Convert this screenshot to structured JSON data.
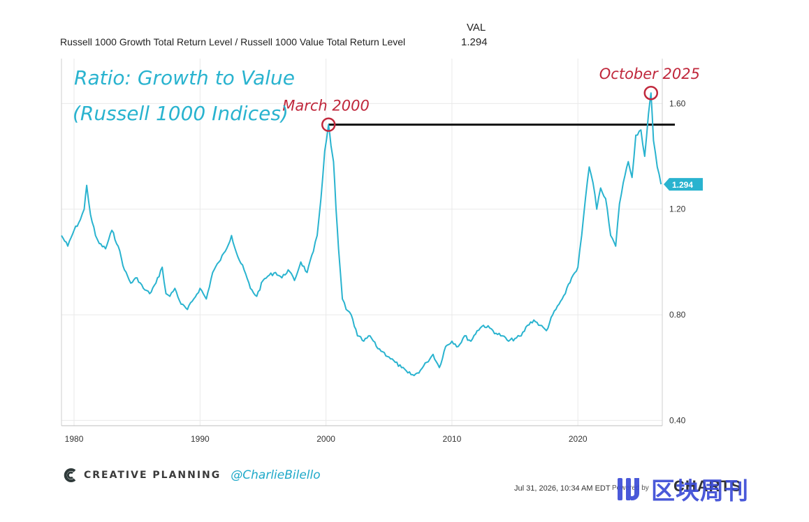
{
  "header": {
    "series_label": "Russell 1000 Growth Total Return Level / Russell 1000 Value Total Return Level",
    "val_label": "VAL",
    "val": "1.294"
  },
  "chart_data": {
    "type": "line",
    "title": "Ratio: Growth to Value",
    "subtitle": "(Russell 1000 Indices)",
    "xlabel": "",
    "ylabel": "",
    "xlim": [
      1979,
      2026.7
    ],
    "ylim": [
      0.38,
      1.77
    ],
    "x_ticks": [
      "1980",
      "1990",
      "2000",
      "2010",
      "2020"
    ],
    "y_ticks": [
      "0.40",
      "0.80",
      "1.20",
      "1.60"
    ],
    "grid": true,
    "last_value_label": "1.294",
    "reference_line_value": 1.52,
    "annotations": [
      {
        "text": "March 2000",
        "x": 2000.2,
        "y": 1.52
      },
      {
        "text": "October 2025",
        "x": 2025.8,
        "y": 1.64
      }
    ],
    "series": [
      {
        "color": "#29b3cf",
        "x": [
          1979.0,
          1979.5,
          1980.0,
          1980.5,
          1980.8,
          1981.0,
          1981.3,
          1981.7,
          1982.0,
          1982.5,
          1983.0,
          1983.5,
          1984.0,
          1984.5,
          1985.0,
          1985.5,
          1986.0,
          1986.5,
          1987.0,
          1987.3,
          1987.6,
          1988.0,
          1988.5,
          1989.0,
          1989.5,
          1990.0,
          1990.5,
          1991.0,
          1991.5,
          1992.0,
          1992.5,
          1993.0,
          1993.5,
          1994.0,
          1994.5,
          1995.0,
          1995.5,
          1996.0,
          1996.5,
          1997.0,
          1997.5,
          1998.0,
          1998.5,
          1999.0,
          1999.3,
          1999.6,
          1999.9,
          2000.2,
          2000.4,
          2000.6,
          2000.8,
          2001.0,
          2001.3,
          2001.6,
          2002.0,
          2002.5,
          2003.0,
          2003.5,
          2004.0,
          2004.5,
          2005.0,
          2005.5,
          2006.0,
          2006.5,
          2007.0,
          2007.5,
          2008.0,
          2008.5,
          2009.0,
          2009.5,
          2010.0,
          2010.5,
          2011.0,
          2011.5,
          2012.0,
          2012.5,
          2013.0,
          2013.5,
          2014.0,
          2014.5,
          2015.0,
          2015.5,
          2016.0,
          2016.5,
          2017.0,
          2017.5,
          2018.0,
          2018.5,
          2019.0,
          2019.5,
          2020.0,
          2020.3,
          2020.6,
          2020.9,
          2021.2,
          2021.5,
          2021.8,
          2022.2,
          2022.6,
          2023.0,
          2023.3,
          2023.6,
          2024.0,
          2024.3,
          2024.6,
          2025.0,
          2025.3,
          2025.6,
          2025.8,
          2026.0,
          2026.3,
          2026.6
        ],
        "y": [
          1.1,
          1.06,
          1.12,
          1.16,
          1.2,
          1.29,
          1.18,
          1.1,
          1.07,
          1.05,
          1.12,
          1.06,
          0.97,
          0.92,
          0.94,
          0.9,
          0.88,
          0.92,
          0.98,
          0.88,
          0.87,
          0.9,
          0.84,
          0.82,
          0.86,
          0.9,
          0.86,
          0.96,
          1.0,
          1.04,
          1.1,
          1.02,
          0.97,
          0.9,
          0.87,
          0.93,
          0.95,
          0.96,
          0.94,
          0.97,
          0.93,
          1.0,
          0.96,
          1.04,
          1.1,
          1.24,
          1.42,
          1.52,
          1.44,
          1.38,
          1.2,
          1.05,
          0.86,
          0.82,
          0.8,
          0.72,
          0.7,
          0.72,
          0.68,
          0.66,
          0.64,
          0.62,
          0.6,
          0.58,
          0.57,
          0.59,
          0.62,
          0.65,
          0.6,
          0.68,
          0.7,
          0.68,
          0.72,
          0.7,
          0.74,
          0.76,
          0.75,
          0.73,
          0.72,
          0.7,
          0.71,
          0.72,
          0.76,
          0.78,
          0.76,
          0.74,
          0.8,
          0.84,
          0.88,
          0.94,
          0.98,
          1.1,
          1.24,
          1.36,
          1.3,
          1.2,
          1.28,
          1.24,
          1.1,
          1.06,
          1.22,
          1.3,
          1.38,
          1.32,
          1.48,
          1.5,
          1.4,
          1.56,
          1.64,
          1.46,
          1.36,
          1.294
        ]
      }
    ]
  },
  "footer": {
    "brand": "CREATIVE PLANNING",
    "handle": "@CharlieBilello",
    "timestamp": "Jul 31, 2026, 10:34 AM EDT",
    "powered": "Powered by",
    "provider": "CHARTS",
    "watermark": "区块周刊"
  },
  "colors": {
    "line": "#29b3cf",
    "title": "#29b3cf",
    "annotation": "#c0283c",
    "reference": "#111111",
    "grid": "#e9e9e9",
    "watermark": "#3b4bd6"
  }
}
